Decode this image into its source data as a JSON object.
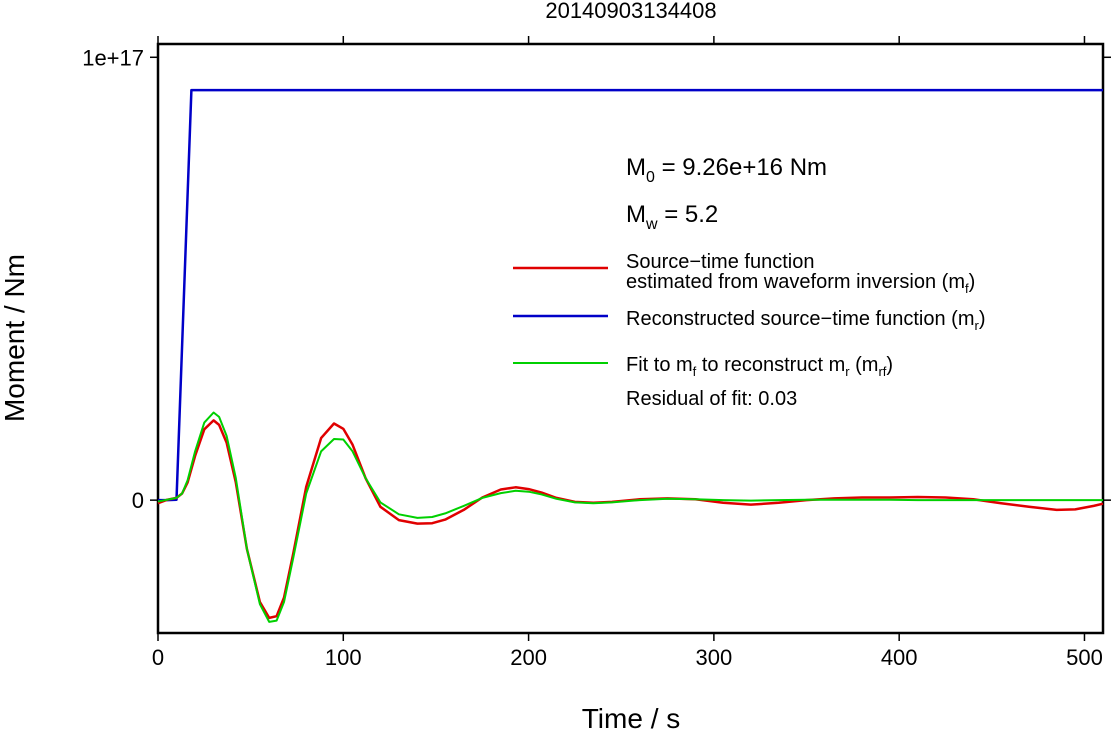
{
  "chart_data": {
    "type": "line",
    "title": "20140903134408",
    "xlabel": "Time / s",
    "ylabel": "Moment / Nm",
    "xlim": [
      0,
      510
    ],
    "ylim": [
      -3e+16,
      1.03e+17
    ],
    "grid": false,
    "legend_position": "right",
    "x_ticks": [
      0,
      100,
      200,
      300,
      400,
      500
    ],
    "x_tick_labels": [
      "0",
      "100",
      "200",
      "300",
      "400",
      "500"
    ],
    "y_ticks": [
      0,
      1e+17
    ],
    "y_tick_labels": [
      "0",
      "1e+17"
    ],
    "annotations": {
      "m0_symbol": "M",
      "m0_subscript": "0",
      "m0_value": " = 9.26e+16 Nm",
      "mw_symbol": "M",
      "mw_subscript": "w",
      "mw_value": " = 5.2",
      "residual": "Residual of fit: 0.03"
    },
    "legend": [
      {
        "color": "#e00000",
        "line1": "Source−time function",
        "line2_prefix": "estimated from waveform inversion (m",
        "line2_sub": "f",
        "line2_suffix": ")"
      },
      {
        "color": "#0000c8",
        "line1_prefix": "Reconstructed source−time function (m",
        "line1_sub": "r",
        "line1_suffix": ")"
      },
      {
        "color": "#00d000",
        "p1": "Fit to m",
        "s1": "f",
        "p2": " to reconstruct m",
        "s2": "r",
        "p3": " (m",
        "s3": "rf",
        "p4": ")"
      }
    ],
    "series": [
      {
        "color": "#e00000",
        "x": [
          0,
          5,
          10,
          13,
          16,
          20,
          25,
          30,
          33,
          37,
          42,
          48,
          55,
          60,
          64,
          68,
          73,
          80,
          88,
          95,
          100,
          105,
          112,
          120,
          130,
          140,
          148,
          155,
          165,
          175,
          185,
          193,
          200,
          207,
          215,
          225,
          235,
          245,
          260,
          275,
          290,
          305,
          320,
          335,
          350,
          365,
          380,
          395,
          410,
          425,
          440,
          455,
          470,
          485,
          495,
          505,
          510
        ],
        "y": [
          -700000000000000.0,
          100000000000000.0,
          500000000000000.0,
          1500000000000000.0,
          4000000000000000.0,
          1e+16,
          1.6e+16,
          1.8e+16,
          1.7e+16,
          1.3e+16,
          4000000000000000.0,
          -1.1e+16,
          -2.3e+16,
          -2.66e+16,
          -2.62e+16,
          -2.2e+16,
          -1.2e+16,
          3000000000000000.0,
          1.4e+16,
          1.73e+16,
          1.61e+16,
          1.25e+16,
          5000000000000000.0,
          -1500000000000000.0,
          -4500000000000000.0,
          -5300000000000000.0,
          -5200000000000000.0,
          -4400000000000000.0,
          -2200000000000000.0,
          600000000000000.0,
          2400000000000000.0,
          2900000000000000.0,
          2500000000000000.0,
          1700000000000000.0,
          500000000000000.0,
          -400000000000000.0,
          -600000000000000.0,
          -400000000000000.0,
          200000000000000.0,
          400000000000000.0,
          200000000000000.0,
          -600000000000000.0,
          -1000000000000000.0,
          -600000000000000.0,
          0,
          400000000000000.0,
          600000000000000.0,
          600000000000000.0,
          700000000000000.0,
          600000000000000.0,
          200000000000000.0,
          -700000000000000.0,
          -1500000000000000.0,
          -2200000000000000.0,
          -2100000000000000.0,
          -1300000000000000.0,
          -800000000000000.0
        ]
      },
      {
        "color": "#0000c8",
        "x": [
          0,
          5,
          10,
          18,
          510
        ],
        "y": [
          0,
          0,
          100000000000000.0,
          9.26e+16,
          9.26e+16
        ]
      },
      {
        "color": "#00d000",
        "x": [
          0,
          5,
          10,
          13,
          16,
          20,
          25,
          30,
          33,
          37,
          42,
          48,
          55,
          60,
          64,
          68,
          73,
          80,
          88,
          95,
          100,
          105,
          112,
          120,
          130,
          140,
          148,
          155,
          165,
          175,
          185,
          193,
          200,
          207,
          215,
          225,
          235,
          245,
          260,
          275,
          290,
          305,
          320,
          335,
          350,
          365,
          380,
          395,
          410,
          425,
          440,
          455,
          470,
          485,
          495,
          505,
          510
        ],
        "y": [
          -300000000000000.0,
          100000000000000.0,
          500000000000000.0,
          1500000000000000.0,
          4500000000000000.0,
          1.1e+16,
          1.75e+16,
          1.98e+16,
          1.88e+16,
          1.45e+16,
          5000000000000000.0,
          -1.1e+16,
          -2.35e+16,
          -2.75e+16,
          -2.72e+16,
          -2.3e+16,
          -1.3e+16,
          1500000000000000.0,
          1.1e+16,
          1.38e+16,
          1.37e+16,
          1.1e+16,
          5000000000000000.0,
          -500000000000000.0,
          -3200000000000000.0,
          -4000000000000000.0,
          -3800000000000000.0,
          -3000000000000000.0,
          -1300000000000000.0,
          500000000000000.0,
          1600000000000000.0,
          2100000000000000.0,
          1900000000000000.0,
          1300000000000000.0,
          300000000000000.0,
          -500000000000000.0,
          -700000000000000.0,
          -500000000000000.0,
          0,
          300000000000000.0,
          200000000000000.0,
          0,
          -100000000000000.0,
          0,
          100000000000000.0,
          100000000000000.0,
          100000000000000.0,
          100000000000000.0,
          0,
          0,
          0,
          0,
          0,
          0,
          0,
          0,
          0
        ]
      }
    ]
  }
}
